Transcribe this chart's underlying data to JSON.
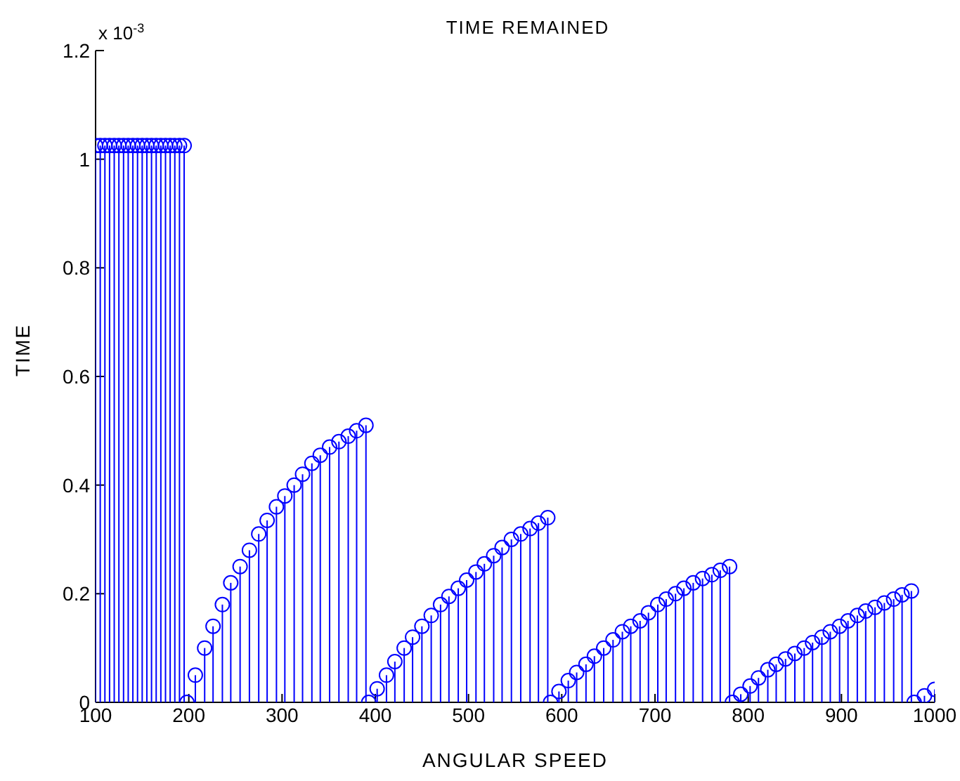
{
  "chart_data": {
    "type": "lollipop",
    "title": "TIME REMAINED",
    "xlabel": "ANGULAR SPEED",
    "ylabel": "TIME",
    "annotations": [
      "x 10$^{-3}$"
    ],
    "x": [
      100,
      105,
      110,
      115,
      120,
      125,
      130,
      135,
      140,
      145,
      150,
      155,
      160,
      165,
      170,
      175,
      180,
      185,
      190,
      195,
      198,
      207,
      217,
      226,
      236,
      245,
      255,
      265,
      275,
      284,
      294,
      303,
      313,
      322,
      332,
      341,
      351,
      361,
      371,
      380,
      390,
      393,
      402,
      412,
      421,
      431,
      440,
      450,
      460,
      470,
      479,
      489,
      498,
      508,
      517,
      527,
      536,
      546,
      556,
      566,
      575,
      585,
      588,
      597,
      607,
      616,
      626,
      635,
      645,
      655,
      665,
      674,
      684,
      693,
      703,
      712,
      722,
      731,
      741,
      751,
      761,
      770,
      780,
      783,
      792,
      802,
      811,
      821,
      830,
      840,
      850,
      860,
      869,
      879,
      888,
      898,
      907,
      917,
      926,
      936,
      946,
      956,
      965,
      975,
      978,
      989,
      1000
    ],
    "series": [
      {
        "color": "#0000ff",
        "values": [
          1.025,
          1.025,
          1.025,
          1.025,
          1.025,
          1.025,
          1.025,
          1.025,
          1.025,
          1.025,
          1.025,
          1.025,
          1.025,
          1.025,
          1.025,
          1.025,
          1.025,
          1.025,
          1.025,
          1.025,
          0,
          0.05,
          0.1,
          0.14,
          0.18,
          0.22,
          0.25,
          0.28,
          0.31,
          0.335,
          0.36,
          0.38,
          0.4,
          0.42,
          0.44,
          0.455,
          0.47,
          0.48,
          0.49,
          0.5,
          0.51,
          0,
          0.025,
          0.05,
          0.075,
          0.1,
          0.12,
          0.14,
          0.16,
          0.18,
          0.195,
          0.21,
          0.225,
          0.24,
          0.255,
          0.27,
          0.285,
          0.3,
          0.31,
          0.32,
          0.33,
          0.34,
          0,
          0.02,
          0.04,
          0.055,
          0.07,
          0.085,
          0.1,
          0.115,
          0.13,
          0.14,
          0.15,
          0.165,
          0.18,
          0.19,
          0.2,
          0.21,
          0.22,
          0.228,
          0.235,
          0.243,
          0.25,
          0,
          0.015,
          0.03,
          0.045,
          0.06,
          0.07,
          0.08,
          0.09,
          0.1,
          0.11,
          0.12,
          0.13,
          0.14,
          0.15,
          0.16,
          0.168,
          0.175,
          0.183,
          0.19,
          0.198,
          0.205,
          0,
          0.012,
          0.024
        ]
      }
    ],
    "xlim": [
      100,
      1000
    ],
    "xticks": [
      100,
      200,
      300,
      400,
      500,
      600,
      700,
      800,
      900,
      1000
    ],
    "ylim": [
      0,
      1.2
    ],
    "yticks": [
      0,
      0.2,
      0.4,
      0.6,
      0.8,
      1,
      1.2
    ],
    "marker": "circle",
    "grid": false
  }
}
